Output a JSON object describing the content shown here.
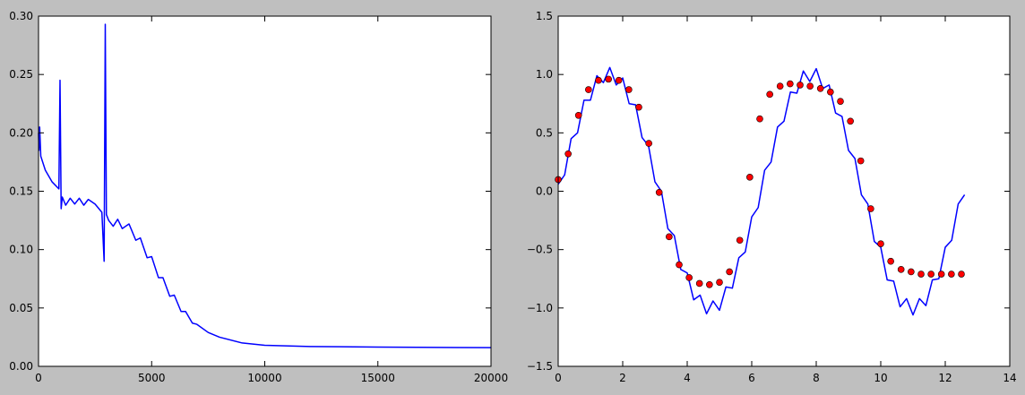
{
  "chart_data": [
    {
      "type": "line",
      "series": [
        {
          "color": "#0000ff",
          "x": [
            0,
            20,
            50,
            100,
            300,
            600,
            900,
            950,
            1000,
            1050,
            1200,
            1400,
            1600,
            1800,
            2000,
            2200,
            2500,
            2800,
            2900,
            2950,
            3000,
            3100,
            3300,
            3500,
            3700,
            4000,
            4300,
            4500,
            4800,
            5000,
            5300,
            5500,
            5800,
            6000,
            6300,
            6500,
            6800,
            7000,
            7500,
            8000,
            9000,
            10000,
            12000,
            15000,
            20000
          ],
          "values": [
            0.2,
            0.185,
            0.205,
            0.18,
            0.168,
            0.158,
            0.152,
            0.245,
            0.135,
            0.145,
            0.138,
            0.144,
            0.139,
            0.144,
            0.138,
            0.143,
            0.139,
            0.132,
            0.09,
            0.293,
            0.13,
            0.125,
            0.12,
            0.126,
            0.118,
            0.122,
            0.108,
            0.11,
            0.093,
            0.094,
            0.076,
            0.076,
            0.06,
            0.061,
            0.047,
            0.047,
            0.037,
            0.036,
            0.029,
            0.025,
            0.02,
            0.018,
            0.017,
            0.0165,
            0.016
          ]
        }
      ],
      "xlim": [
        0,
        20000
      ],
      "xticks": [
        0,
        5000,
        10000,
        15000,
        20000
      ],
      "ylim": [
        0,
        0.3
      ],
      "yticks": [
        {
          "value": 0,
          "label": "0.00"
        },
        0.05,
        {
          "value": 0.1,
          "label": "0.10"
        },
        0.15,
        {
          "value": 0.2,
          "label": "0.20"
        },
        0.25,
        {
          "value": 0.3,
          "label": "0.30"
        }
      ]
    },
    {
      "type": "line",
      "series": [
        {
          "type": "line",
          "color": "#0000ff",
          "x": [
            0,
            0.2,
            0.4,
            0.6,
            0.8,
            1.0,
            1.2,
            1.4,
            1.6,
            1.8,
            2.0,
            2.2,
            2.4,
            2.6,
            2.8,
            3.0,
            3.2,
            3.4,
            3.6,
            3.8,
            4.0,
            4.2,
            4.4,
            4.6,
            4.8,
            5.0,
            5.2,
            5.4,
            5.6,
            5.8,
            6.0,
            6.2,
            6.4,
            6.6,
            6.8,
            7.0,
            7.2,
            7.4,
            7.6,
            7.8,
            8.0,
            8.2,
            8.4,
            8.6,
            8.8,
            9.0,
            9.2,
            9.4,
            9.6,
            9.8,
            10.0,
            10.2,
            10.4,
            10.6,
            10.8,
            11.0,
            11.2,
            11.4,
            11.6,
            11.8,
            12.0,
            12.2,
            12.4,
            12.6
          ],
          "values": [
            0.06,
            0.14,
            0.45,
            0.5,
            0.78,
            0.78,
            0.99,
            0.93,
            1.06,
            0.91,
            0.97,
            0.75,
            0.74,
            0.46,
            0.39,
            0.08,
            0.0,
            -0.32,
            -0.38,
            -0.67,
            -0.7,
            -0.93,
            -0.89,
            -1.05,
            -0.94,
            -1.02,
            -0.82,
            -0.83,
            -0.57,
            -0.52,
            -0.22,
            -0.14,
            0.18,
            0.25,
            0.55,
            0.6,
            0.85,
            0.84,
            1.03,
            0.94,
            1.05,
            0.88,
            0.91,
            0.67,
            0.64,
            0.35,
            0.28,
            -0.03,
            -0.11,
            -0.43,
            -0.48,
            -0.76,
            -0.77,
            -0.99,
            -0.92,
            -1.06,
            -0.92,
            -0.98,
            -0.76,
            -0.75,
            -0.48,
            -0.42,
            -0.11,
            -0.03
          ]
        },
        {
          "type": "scatter",
          "color": "#ff0000",
          "x": [
            0,
            0.31,
            0.63,
            0.94,
            1.25,
            1.56,
            1.88,
            2.19,
            2.5,
            2.81,
            3.13,
            3.44,
            3.75,
            4.06,
            4.38,
            4.69,
            5.0,
            5.31,
            5.63,
            5.94,
            6.25,
            6.56,
            6.88,
            7.19,
            7.5,
            7.81,
            8.13,
            8.44,
            8.75,
            9.06,
            9.38,
            9.69,
            10.0,
            10.31,
            10.63,
            10.94,
            11.25,
            11.56,
            11.88,
            12.19,
            12.5
          ],
          "values": [
            0.1,
            0.32,
            0.65,
            0.87,
            0.95,
            0.96,
            0.95,
            0.87,
            0.72,
            0.41,
            -0.01,
            -0.39,
            -0.63,
            -0.74,
            -0.79,
            -0.8,
            -0.78,
            -0.69,
            -0.42,
            0.12,
            0.62,
            0.83,
            0.9,
            0.92,
            0.91,
            0.9,
            0.88,
            0.85,
            0.77,
            0.6,
            0.26,
            -0.15,
            -0.45,
            -0.6,
            -0.67,
            -0.69,
            -0.71,
            -0.71,
            -0.71,
            -0.71,
            -0.71
          ]
        }
      ],
      "xlim": [
        0,
        14
      ],
      "xticks": [
        0,
        2,
        4,
        6,
        8,
        10,
        12,
        14
      ],
      "ylim": [
        -1.5,
        1.5
      ],
      "yticks": [
        {
          "value": -1.5,
          "label": "−1.5"
        },
        {
          "value": -1.0,
          "label": "−1.0"
        },
        {
          "value": -0.5,
          "label": "−0.5"
        },
        {
          "value": 0,
          "label": "0.0"
        },
        0.5,
        {
          "value": 1.0,
          "label": "1.0"
        },
        1.5
      ]
    }
  ]
}
